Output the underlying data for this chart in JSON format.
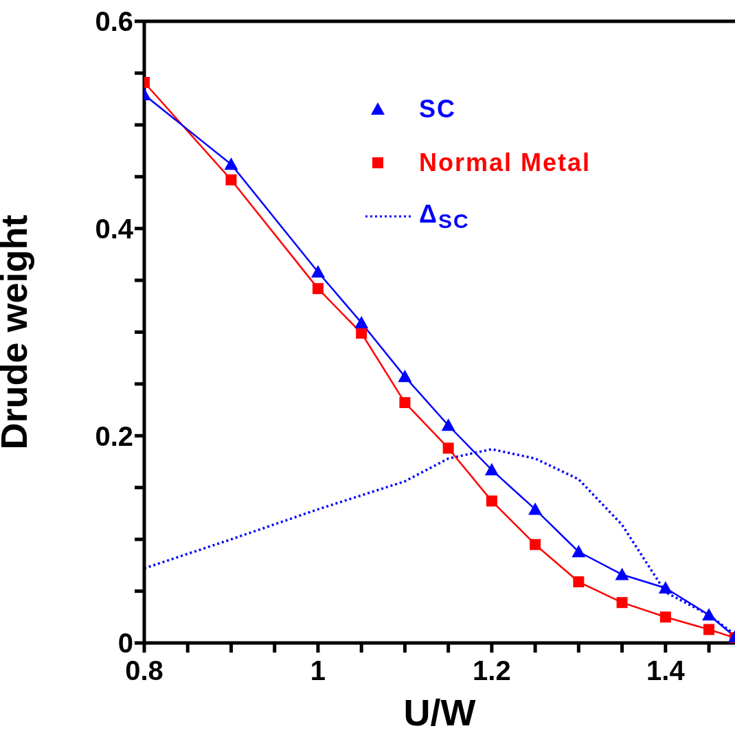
{
  "chart_data": {
    "type": "line",
    "xlabel": "U/W",
    "ylabel": "Drude weight",
    "xlim": [
      0.8,
      1.48
    ],
    "ylim": [
      0,
      0.6
    ],
    "xticks": [
      0.8,
      {
        "value": 0.85,
        "label": null
      },
      {
        "value": 0.9,
        "label": null
      },
      {
        "value": 0.95,
        "label": null
      },
      1,
      {
        "value": 1.05,
        "label": null
      },
      {
        "value": 1.1,
        "label": null
      },
      {
        "value": 1.15,
        "label": null
      },
      1.2,
      {
        "value": 1.25,
        "label": null
      },
      {
        "value": 1.3,
        "label": null
      },
      {
        "value": 1.35,
        "label": null
      },
      1.4,
      {
        "value": 1.45,
        "label": null
      }
    ],
    "yticks": [
      0,
      {
        "value": 0.05,
        "label": null
      },
      {
        "value": 0.1,
        "label": null
      },
      {
        "value": 0.15,
        "label": null
      },
      0.2,
      {
        "value": 0.25,
        "label": null
      },
      {
        "value": 0.3,
        "label": null
      },
      {
        "value": 0.35,
        "label": null
      },
      0.4,
      {
        "value": 0.45,
        "label": null
      },
      {
        "value": 0.5,
        "label": null
      },
      {
        "value": 0.55,
        "label": null
      },
      0.6
    ],
    "legend": "top right",
    "series": [
      {
        "name": "SC",
        "color": "#0000ff",
        "marker": "triangle",
        "line_style": "solid",
        "x": [
          0.8,
          0.9,
          1.0,
          1.05,
          1.1,
          1.15,
          1.2,
          1.25,
          1.3,
          1.35,
          1.4,
          1.45,
          1.48
        ],
        "values": [
          0.529,
          0.462,
          0.358,
          0.309,
          0.257,
          0.21,
          0.167,
          0.129,
          0.088,
          0.066,
          0.053,
          0.027,
          0.006
        ]
      },
      {
        "name": "Normal Metal",
        "color": "#ff0000",
        "marker": "square",
        "line_style": "solid",
        "x": [
          0.8,
          0.9,
          1.0,
          1.05,
          1.1,
          1.15,
          1.2,
          1.25,
          1.3,
          1.35,
          1.4,
          1.45,
          1.48
        ],
        "values": [
          0.541,
          0.447,
          0.342,
          0.299,
          0.232,
          0.188,
          0.137,
          0.095,
          0.059,
          0.039,
          0.025,
          0.013,
          0.005
        ]
      },
      {
        "name": "Δ$_{SC}$",
        "color": "#0000ff",
        "marker": "none",
        "line_style": "dotted",
        "x": [
          0.8,
          0.9,
          1.0,
          1.1,
          1.15,
          1.2,
          1.25,
          1.3,
          1.35,
          1.4,
          1.45,
          1.48
        ],
        "values": [
          0.072,
          0.1,
          0.129,
          0.156,
          0.178,
          0.187,
          0.178,
          0.158,
          0.114,
          0.049,
          0.027,
          0.008
        ]
      }
    ]
  }
}
